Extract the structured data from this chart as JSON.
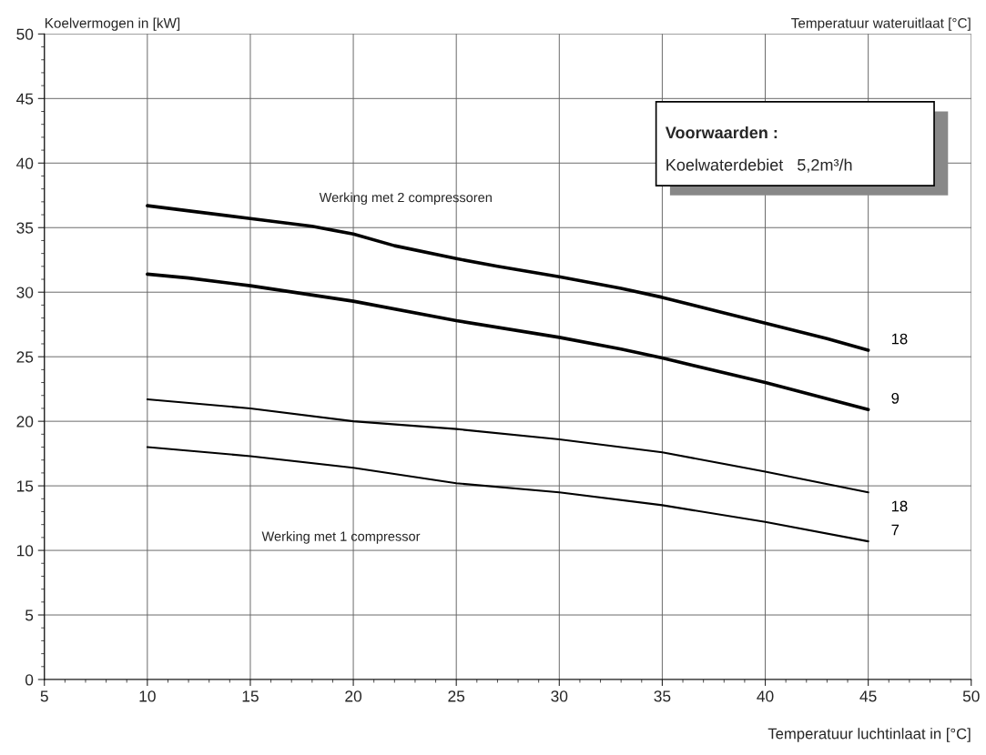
{
  "chart_data": {
    "type": "line",
    "ylabel": "Koelvermogen in [kW]",
    "xlabel": "Temperatuur luchtinlaat in [°C]",
    "legend_title": "Temperatuur wateruitlaat [°C]",
    "annotations": [
      "Werking met 2 compressoren",
      "Werking met 1 compressor",
      "Voorwaarden :",
      "Koelwaterdebiet   5,2m³/h"
    ],
    "xlim": [
      5,
      50
    ],
    "xticks": [
      5,
      10,
      15,
      20,
      25,
      30,
      35,
      40,
      45,
      50
    ],
    "ylim": [
      0,
      50
    ],
    "yticks": [
      0,
      5,
      10,
      15,
      20,
      25,
      30,
      35,
      40,
      45,
      50
    ],
    "grid": true,
    "legend": false,
    "series": [
      {
        "name": "18",
        "color": "#000000",
        "x": [
          10,
          15,
          18,
          20,
          22,
          25,
          27,
          30,
          33,
          35,
          38,
          40,
          43,
          45
        ],
        "values": [
          36.7,
          35.7,
          35.1,
          34.5,
          33.6,
          32.6,
          32.0,
          31.2,
          30.3,
          29.6,
          28.4,
          27.6,
          26.4,
          25.5
        ]
      },
      {
        "name": "9",
        "color": "#000000",
        "x": [
          10,
          12,
          15,
          20,
          25,
          30,
          33,
          35,
          40,
          45
        ],
        "values": [
          31.4,
          31.1,
          30.5,
          29.3,
          27.8,
          26.5,
          25.6,
          24.9,
          23.0,
          20.9
        ]
      },
      {
        "name": "18",
        "color": "#000000",
        "x": [
          10,
          15,
          20,
          25,
          30,
          35,
          40,
          45
        ],
        "values": [
          21.7,
          21.0,
          20.0,
          19.4,
          18.6,
          17.6,
          16.1,
          14.5
        ]
      },
      {
        "name": "7",
        "color": "#000000",
        "x": [
          10,
          15,
          20,
          25,
          30,
          35,
          40,
          45
        ],
        "values": [
          18.0,
          17.3,
          16.4,
          15.2,
          14.5,
          13.5,
          12.2,
          10.7
        ]
      }
    ]
  }
}
